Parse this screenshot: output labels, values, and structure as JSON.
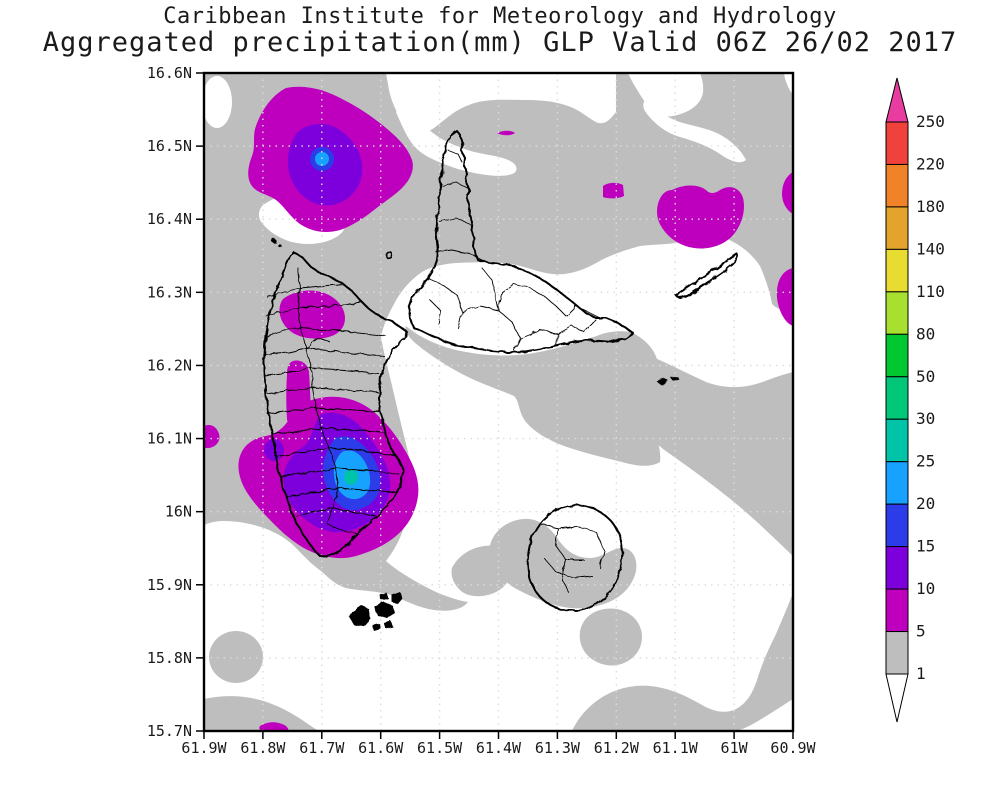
{
  "title": {
    "line1": "Caribbean Institute for Meteorology and Hydrology",
    "line2": "Aggregated precipitation(mm) GLP Valid 06Z 26/02 2017"
  },
  "axes": {
    "x_ticks": [
      "61.9W",
      "61.8W",
      "61.7W",
      "61.6W",
      "61.5W",
      "61.4W",
      "61.3W",
      "61.2W",
      "61.1W",
      "61W",
      "60.9W"
    ],
    "y_ticks": [
      "16.6N",
      "16.5N",
      "16.4N",
      "16.3N",
      "16.2N",
      "16.1N",
      "16N",
      "15.9N",
      "15.8N",
      "15.7N"
    ]
  },
  "colorbar": {
    "values": [
      "250",
      "220",
      "180",
      "140",
      "110",
      "80",
      "50",
      "30",
      "25",
      "20",
      "15",
      "10",
      "5",
      "1"
    ],
    "segment_colors": [
      "#F0413C",
      "#F08228",
      "#E2A42C",
      "#E8DC30",
      "#A8E030",
      "#00C830",
      "#00C878",
      "#00C4A8",
      "#18A2FF",
      "#2B3CE8",
      "#7D00DC",
      "#BE00BE",
      "#BEBEBE"
    ],
    "arrow_top_color": "#E83CA0",
    "arrow_bottom_color": "#FFFFFF"
  },
  "palette": {
    "sea_white": "#FFFFFF",
    "gray": "#BEBEBE",
    "magenta": "#BE00BE",
    "purple": "#7D00DC",
    "blue": "#2B3CE8",
    "light_blue": "#18A2FF",
    "teal": "#00C4A8",
    "grid": "#DCDCDC",
    "coastline": "#000000"
  }
}
